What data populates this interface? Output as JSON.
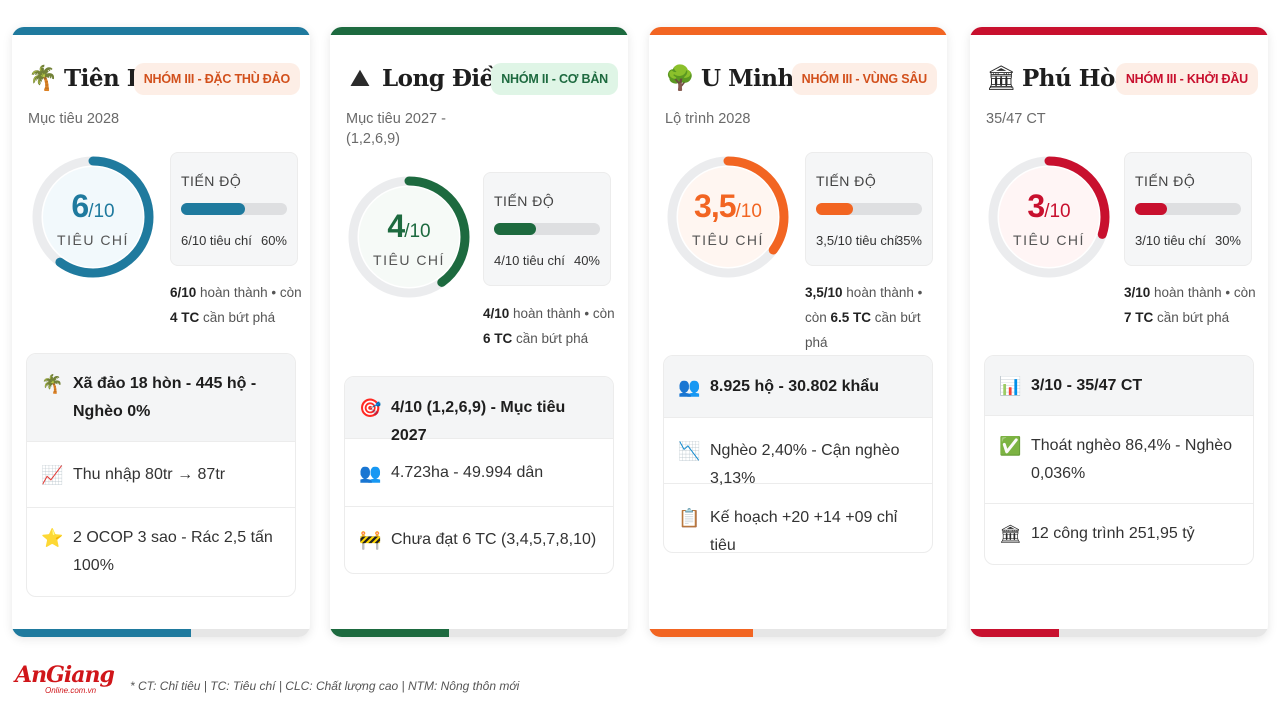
{
  "cards": [
    {
      "name": "Tiên Hải",
      "icon": "palm-tree-icon",
      "badge": "NHÓM III - ĐẶC THÙ ĐẢO",
      "subtitle": "Mục tiêu 2028",
      "accent": "#1f7a9e",
      "badge_bg": "#fdeee6",
      "badge_color": "#d2501c",
      "score_num": "6",
      "score_den": "/10",
      "ring_label": "TIÊU CHÍ",
      "progress_label": "TIẾN ĐỘ",
      "progress_text": "6/10 tiêu chí",
      "progress_pct": "60%",
      "progress_value": 0.6,
      "summary_b1": "6/10",
      "summary_t1": " hoàn thành • còn ",
      "summary_b2": "4 TC",
      "summary_t2": " cần bứt phá",
      "rows": [
        {
          "icon": "palm-tree-icon",
          "text": "Xã đảo 18 hòn - 445 hộ - Nghèo 0%"
        },
        {
          "icon": "chart-increasing-icon",
          "text": "Thu nhập 80tr → 87tr"
        },
        {
          "icon": "star-icon",
          "text": "2 OCOP 3 sao - Rác 2,5 tấn 100%"
        }
      ]
    },
    {
      "name": "Long Điền",
      "icon": "mountain-icon",
      "badge": "NHÓM II - CƠ BẢN",
      "subtitle": "Mục tiêu 2027 - (1,2,6,9)",
      "accent": "#1d6a3f",
      "badge_bg": "#dff5e6",
      "badge_color": "#1d6a3f",
      "score_num": "4",
      "score_den": "/10",
      "ring_label": "TIÊU CHÍ",
      "progress_label": "TIẾN ĐỘ",
      "progress_text": "4/10 tiêu chí",
      "progress_pct": "40%",
      "progress_value": 0.4,
      "summary_b1": "4/10",
      "summary_t1": " hoàn thành • còn ",
      "summary_b2": "6 TC",
      "summary_t2": " cần bứt phá",
      "rows": [
        {
          "icon": "target-icon",
          "text": "4/10 (1,2,6,9) - Mục tiêu 2027"
        },
        {
          "icon": "people-icon",
          "text": "4.723ha - 49.994 dân"
        },
        {
          "icon": "barrier-icon",
          "text": "Chưa đạt 6 TC (3,4,5,7,8,10)"
        }
      ]
    },
    {
      "name": "U Minh Thượng",
      "icon": "tree-icon",
      "badge": "NHÓM III - VÙNG SÂU",
      "subtitle": "Lộ trình 2028",
      "accent": "#f26522",
      "badge_bg": "#fdeee6",
      "badge_color": "#d2501c",
      "score_num": "3,5",
      "score_den": "/10",
      "ring_label": "TIÊU CHÍ",
      "progress_label": "TIẾN ĐỘ",
      "progress_text": "3,5/10 tiêu chí",
      "progress_pct": "35%",
      "progress_value": 0.35,
      "summary_b1": "3,5/10",
      "summary_t1": " hoàn thành • còn ",
      "summary_b2": "6.5 TC",
      "summary_t2": " cần bứt phá",
      "rows": [
        {
          "icon": "people-icon",
          "text": "8.925 hộ - 30.802 khẩu"
        },
        {
          "icon": "chart-decreasing-icon",
          "text": "Nghèo 2,40% - Cận nghèo 3,13%"
        },
        {
          "icon": "clipboard-icon",
          "text": "Kế hoạch +20 +14 +09 chỉ tiêu"
        }
      ]
    },
    {
      "name": "Phú Hòa",
      "icon": "building-icon",
      "badge": "NHÓM III - KHỞI ĐẦU",
      "subtitle": "35/47 CT",
      "accent": "#c8102e",
      "badge_bg": "#fdeee6",
      "badge_color": "#c8102e",
      "score_num": "3",
      "score_den": "/10",
      "ring_label": "TIÊU CHÍ",
      "progress_label": "TIẾN ĐỘ",
      "progress_text": "3/10 tiêu chí",
      "progress_pct": "30%",
      "progress_value": 0.3,
      "summary_b1": "3/10",
      "summary_t1": " hoàn thành • còn ",
      "summary_b2": "7 TC",
      "summary_t2": " cần bứt phá",
      "rows": [
        {
          "icon": "bar-chart-icon",
          "text": "3/10 - 35/47 CT"
        },
        {
          "icon": "check-box-icon",
          "text": "Thoát nghèo 86,4% - Nghèo 0,036%"
        },
        {
          "icon": "building-icon",
          "text": "12 công trình 251,95 tỷ"
        }
      ]
    }
  ],
  "footer": {
    "logo_main": "AnGiang",
    "logo_sub": "Online.com.vn",
    "note": "* CT: Chỉ tiêu | TC: Tiêu chí | CLC: Chất lượng cao | NTM: Nông thôn mới"
  }
}
